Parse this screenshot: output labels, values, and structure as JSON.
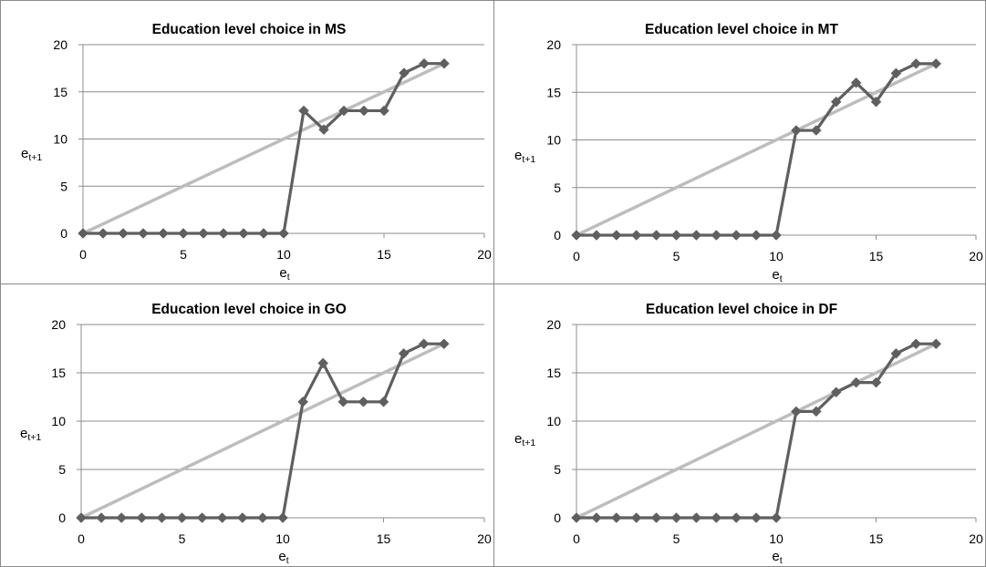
{
  "chart_data": [
    {
      "type": "line",
      "title": "Education level choice in MS",
      "xlabel": "et",
      "xlabel_base": "e",
      "xlabel_sub": "t",
      "ylabel": "et+1",
      "ylabel_base": "e",
      "ylabel_sub": "t+1",
      "xlim": [
        0,
        20
      ],
      "ylim": [
        0,
        20
      ],
      "x_ticks": [
        "0",
        "5",
        "10",
        "15",
        "20"
      ],
      "y_ticks": [
        "0",
        "5",
        "10",
        "15",
        "20"
      ],
      "grid": "horizontal",
      "series": [
        {
          "color": "#5f5f5f",
          "marker": "diamond",
          "x": [
            0,
            1,
            2,
            3,
            4,
            5,
            6,
            7,
            8,
            9,
            10,
            11,
            12,
            13,
            14,
            15,
            16,
            17,
            18
          ],
          "y": [
            0,
            0,
            0,
            0,
            0,
            0,
            0,
            0,
            0,
            0,
            0,
            13,
            11,
            13,
            13,
            13,
            17,
            18,
            18
          ]
        },
        {
          "color": "#bdbdbd",
          "marker": "none",
          "x": [
            0,
            1,
            2,
            3,
            4,
            5,
            6,
            7,
            8,
            9,
            10,
            11,
            12,
            13,
            14,
            15,
            16,
            17,
            18
          ],
          "y": [
            0,
            1,
            2,
            3,
            4,
            5,
            6,
            7,
            8,
            9,
            10,
            11,
            12,
            13,
            14,
            15,
            16,
            17,
            18
          ]
        }
      ]
    },
    {
      "type": "line",
      "title": "Education level choice in MT",
      "xlabel": "et",
      "xlabel_base": "e",
      "xlabel_sub": "t",
      "ylabel": "et+1",
      "ylabel_base": "e",
      "ylabel_sub": "t+1",
      "xlim": [
        0,
        20
      ],
      "ylim": [
        0,
        20
      ],
      "x_ticks": [
        "0",
        "5",
        "10",
        "15",
        "20"
      ],
      "y_ticks": [
        "0",
        "5",
        "10",
        "15",
        "20"
      ],
      "grid": "horizontal",
      "series": [
        {
          "color": "#5f5f5f",
          "marker": "diamond",
          "x": [
            0,
            1,
            2,
            3,
            4,
            5,
            6,
            7,
            8,
            9,
            10,
            11,
            12,
            13,
            14,
            15,
            16,
            17,
            18
          ],
          "y": [
            0,
            0,
            0,
            0,
            0,
            0,
            0,
            0,
            0,
            0,
            0,
            11,
            11,
            14,
            16,
            14,
            17,
            18,
            18
          ]
        },
        {
          "color": "#bdbdbd",
          "marker": "none",
          "x": [
            0,
            1,
            2,
            3,
            4,
            5,
            6,
            7,
            8,
            9,
            10,
            11,
            12,
            13,
            14,
            15,
            16,
            17,
            18
          ],
          "y": [
            0,
            1,
            2,
            3,
            4,
            5,
            6,
            7,
            8,
            9,
            10,
            11,
            12,
            13,
            14,
            15,
            16,
            17,
            18
          ]
        }
      ]
    },
    {
      "type": "line",
      "title": "Education level choice in GO",
      "xlabel": "et",
      "xlabel_base": "e",
      "xlabel_sub": "t",
      "ylabel": "et+1",
      "ylabel_base": "e",
      "ylabel_sub": "t+1",
      "xlim": [
        0,
        20
      ],
      "ylim": [
        0,
        20
      ],
      "x_ticks": [
        "0",
        "5",
        "10",
        "15",
        "20"
      ],
      "y_ticks": [
        "0",
        "5",
        "10",
        "15",
        "20"
      ],
      "grid": "horizontal",
      "series": [
        {
          "color": "#5f5f5f",
          "marker": "diamond",
          "x": [
            0,
            1,
            2,
            3,
            4,
            5,
            6,
            7,
            8,
            9,
            10,
            11,
            12,
            13,
            14,
            15,
            16,
            17,
            18
          ],
          "y": [
            0,
            0,
            0,
            0,
            0,
            0,
            0,
            0,
            0,
            0,
            0,
            12,
            16,
            12,
            12,
            12,
            17,
            18,
            18
          ]
        },
        {
          "color": "#bdbdbd",
          "marker": "none",
          "x": [
            0,
            1,
            2,
            3,
            4,
            5,
            6,
            7,
            8,
            9,
            10,
            11,
            12,
            13,
            14,
            15,
            16,
            17,
            18
          ],
          "y": [
            0,
            1,
            2,
            3,
            4,
            5,
            6,
            7,
            8,
            9,
            10,
            11,
            12,
            13,
            14,
            15,
            16,
            17,
            18
          ]
        }
      ]
    },
    {
      "type": "line",
      "title": "Education level choice in DF",
      "xlabel": "et",
      "xlabel_base": "e",
      "xlabel_sub": "t",
      "ylabel": "et+1",
      "ylabel_base": "e",
      "ylabel_sub": "t+1",
      "xlim": [
        0,
        20
      ],
      "ylim": [
        0,
        20
      ],
      "x_ticks": [
        "0",
        "5",
        "10",
        "15",
        "20"
      ],
      "y_ticks": [
        "0",
        "5",
        "10",
        "15",
        "20"
      ],
      "grid": "horizontal",
      "series": [
        {
          "color": "#5f5f5f",
          "marker": "diamond",
          "x": [
            0,
            1,
            2,
            3,
            4,
            5,
            6,
            7,
            8,
            9,
            10,
            11,
            12,
            13,
            14,
            15,
            16,
            17,
            18
          ],
          "y": [
            0,
            0,
            0,
            0,
            0,
            0,
            0,
            0,
            0,
            0,
            0,
            11,
            11,
            13,
            14,
            14,
            17,
            18,
            18
          ]
        },
        {
          "color": "#bdbdbd",
          "marker": "none",
          "x": [
            0,
            1,
            2,
            3,
            4,
            5,
            6,
            7,
            8,
            9,
            10,
            11,
            12,
            13,
            14,
            15,
            16,
            17,
            18
          ],
          "y": [
            0,
            1,
            2,
            3,
            4,
            5,
            6,
            7,
            8,
            9,
            10,
            11,
            12,
            13,
            14,
            15,
            16,
            17,
            18
          ]
        }
      ]
    }
  ]
}
